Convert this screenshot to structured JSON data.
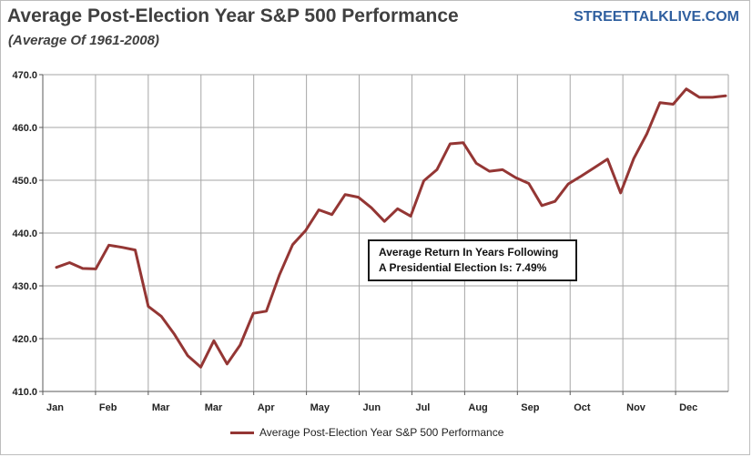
{
  "header": {
    "title": "Average Post-Election Year S&P 500 Performance",
    "subtitle": "(Average Of 1961-2008)",
    "brand": "STREETTALKLIVE.COM"
  },
  "annotation": {
    "line1": "Average Return In Years Following",
    "line2": "A Presidential Election Is:  7.49%"
  },
  "colors": {
    "series": "#943634",
    "grid": "#a6a6a6",
    "axis": "#595959"
  },
  "chart_data": {
    "type": "line",
    "title": "Average Post-Election Year S&P 500 Performance",
    "xlabel": "",
    "ylabel": "",
    "ylim": [
      410,
      470
    ],
    "yticks": [
      "410.0",
      "420.0",
      "430.0",
      "440.0",
      "450.0",
      "460.0",
      "470.0"
    ],
    "x_tick_labels": [
      "Jan",
      "Feb",
      "Mar",
      "Mar",
      "Apr",
      "May",
      "Jun",
      "Jul",
      "Aug",
      "Sep",
      "Oct",
      "Nov",
      "Dec"
    ],
    "grid": true,
    "legend_position": "bottom",
    "series": [
      {
        "name": "Average Post-Election Year S&P 500 Performance",
        "values": [
          433.5,
          434.4,
          433.3,
          433.2,
          437.7,
          437.3,
          436.8,
          426.1,
          424.2,
          420.8,
          416.8,
          414.6,
          419.6,
          415.2,
          418.8,
          424.8,
          425.2,
          432.1,
          437.8,
          440.5,
          444.4,
          443.5,
          447.3,
          446.8,
          444.8,
          442.2,
          444.6,
          443.2,
          449.9,
          452.0,
          456.9,
          457.1,
          453.2,
          451.7,
          452.0,
          450.5,
          449.4,
          445.2,
          446.0,
          449.3,
          450.8,
          452.4,
          454.0,
          447.6,
          454.1,
          458.8,
          464.7,
          464.4,
          467.3,
          465.7,
          465.7,
          466.0
        ]
      }
    ]
  }
}
